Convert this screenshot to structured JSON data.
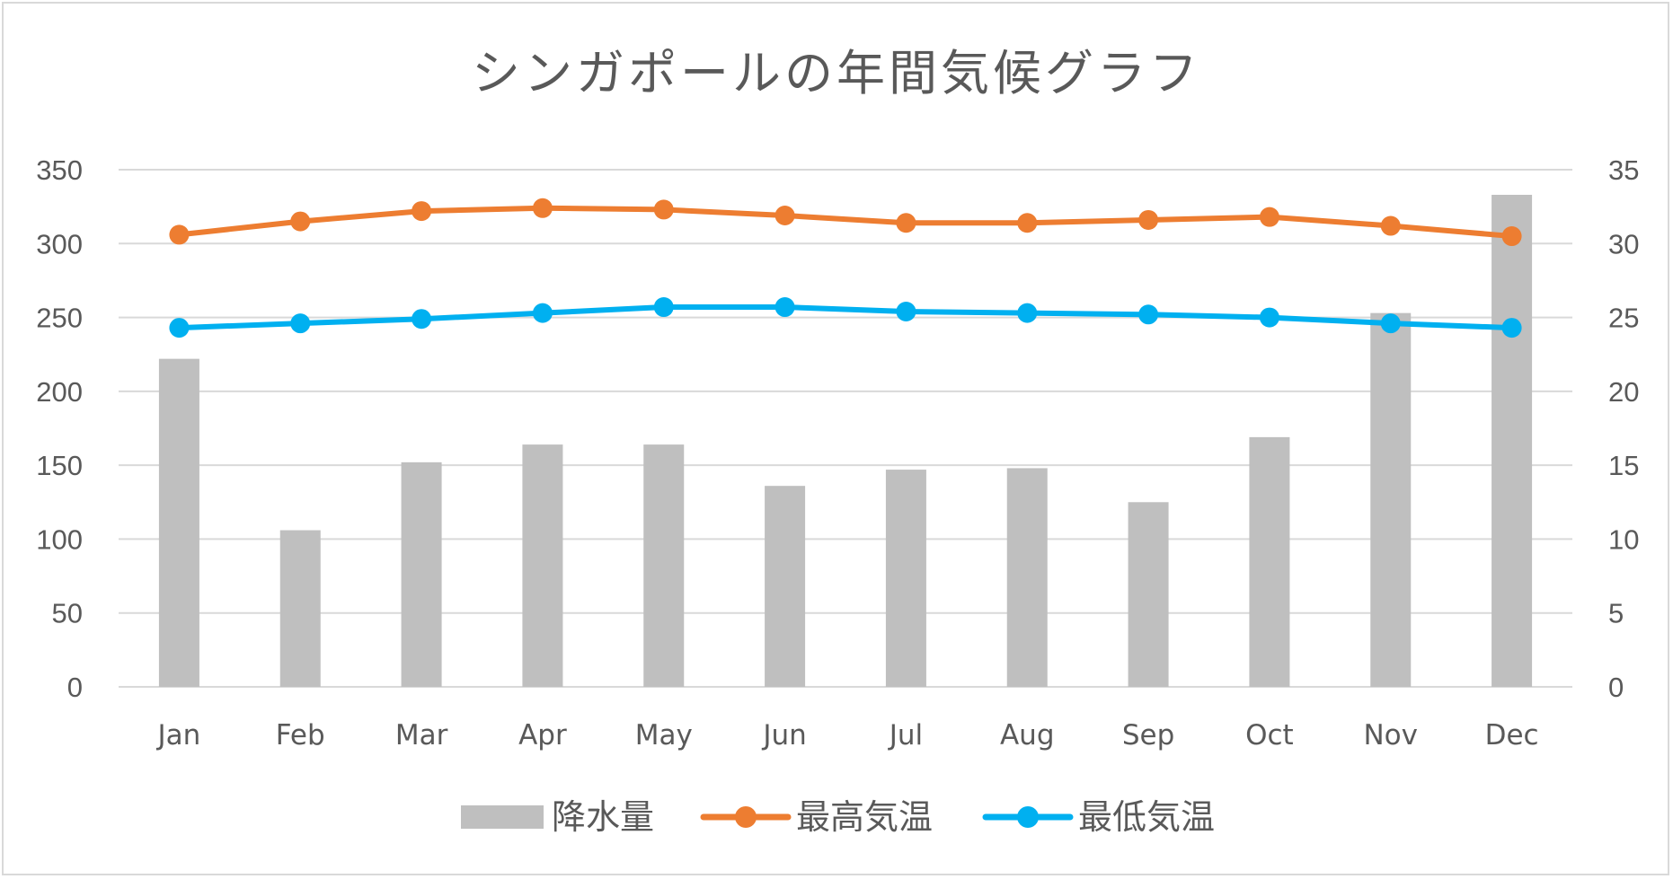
{
  "chart_data": {
    "type": "bar",
    "title": "シンガポールの年間気候グラフ",
    "categories": [
      "Jan",
      "Feb",
      "Mar",
      "Apr",
      "May",
      "Jun",
      "Jul",
      "Aug",
      "Sep",
      "Oct",
      "Nov",
      "Dec"
    ],
    "y_left": {
      "ylim": [
        0,
        350
      ],
      "ticks": [
        "0",
        "50",
        "100",
        "150",
        "200",
        "250",
        "300",
        "350"
      ]
    },
    "y_right": {
      "ylim": [
        0,
        35
      ],
      "ticks": [
        "0",
        "5",
        "10",
        "15",
        "20",
        "25",
        "30",
        "35"
      ]
    },
    "grid": true,
    "legend_position": "bottom",
    "series": [
      {
        "name": "降水量",
        "type": "bar",
        "axis": "left",
        "color": "#bfbfbf",
        "values": [
          222,
          106,
          152,
          164,
          164,
          136,
          147,
          148,
          125,
          169,
          253,
          333
        ]
      },
      {
        "name": "最高気温",
        "type": "line",
        "axis": "right",
        "color": "#ed7d31",
        "values": [
          30.6,
          31.5,
          32.2,
          32.4,
          32.3,
          31.9,
          31.4,
          31.4,
          31.6,
          31.8,
          31.2,
          30.5
        ]
      },
      {
        "name": "最低気温",
        "type": "line",
        "axis": "right",
        "color": "#00b0f0",
        "values": [
          24.3,
          24.6,
          24.9,
          25.3,
          25.7,
          25.7,
          25.4,
          25.3,
          25.2,
          25.0,
          24.6,
          24.3
        ]
      }
    ]
  }
}
